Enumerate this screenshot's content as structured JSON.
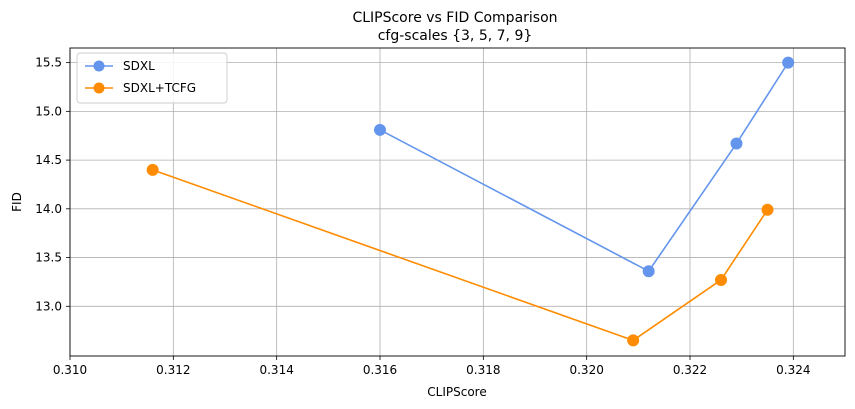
{
  "chart_data": {
    "type": "line",
    "title": "CLIPScore vs FID Comparison",
    "subtitle": "cfg-scales {3, 5, 7, 9}",
    "xlabel": "CLIPScore",
    "ylabel": "FID",
    "xlim": [
      0.31,
      0.325
    ],
    "ylim": [
      12.49,
      15.65
    ],
    "xticks": [
      "0.310",
      "0.312",
      "0.314",
      "0.316",
      "0.318",
      "0.320",
      "0.322",
      "0.324"
    ],
    "yticks": [
      "13.0",
      "13.5",
      "14.0",
      "14.5",
      "15.0",
      "15.5"
    ],
    "grid": true,
    "legend_position": "top-left",
    "series": [
      {
        "name": "SDXL",
        "color": "#6495ED",
        "points": [
          {
            "x": 0.316,
            "y": 14.81
          },
          {
            "x": 0.3212,
            "y": 13.36
          },
          {
            "x": 0.3229,
            "y": 14.67
          },
          {
            "x": 0.3239,
            "y": 15.5
          }
        ]
      },
      {
        "name": "SDXL+TCFG",
        "color": "#FF8C00",
        "points": [
          {
            "x": 0.3116,
            "y": 14.4
          },
          {
            "x": 0.3209,
            "y": 12.65
          },
          {
            "x": 0.3226,
            "y": 13.27
          },
          {
            "x": 0.3235,
            "y": 13.99
          }
        ]
      }
    ]
  }
}
